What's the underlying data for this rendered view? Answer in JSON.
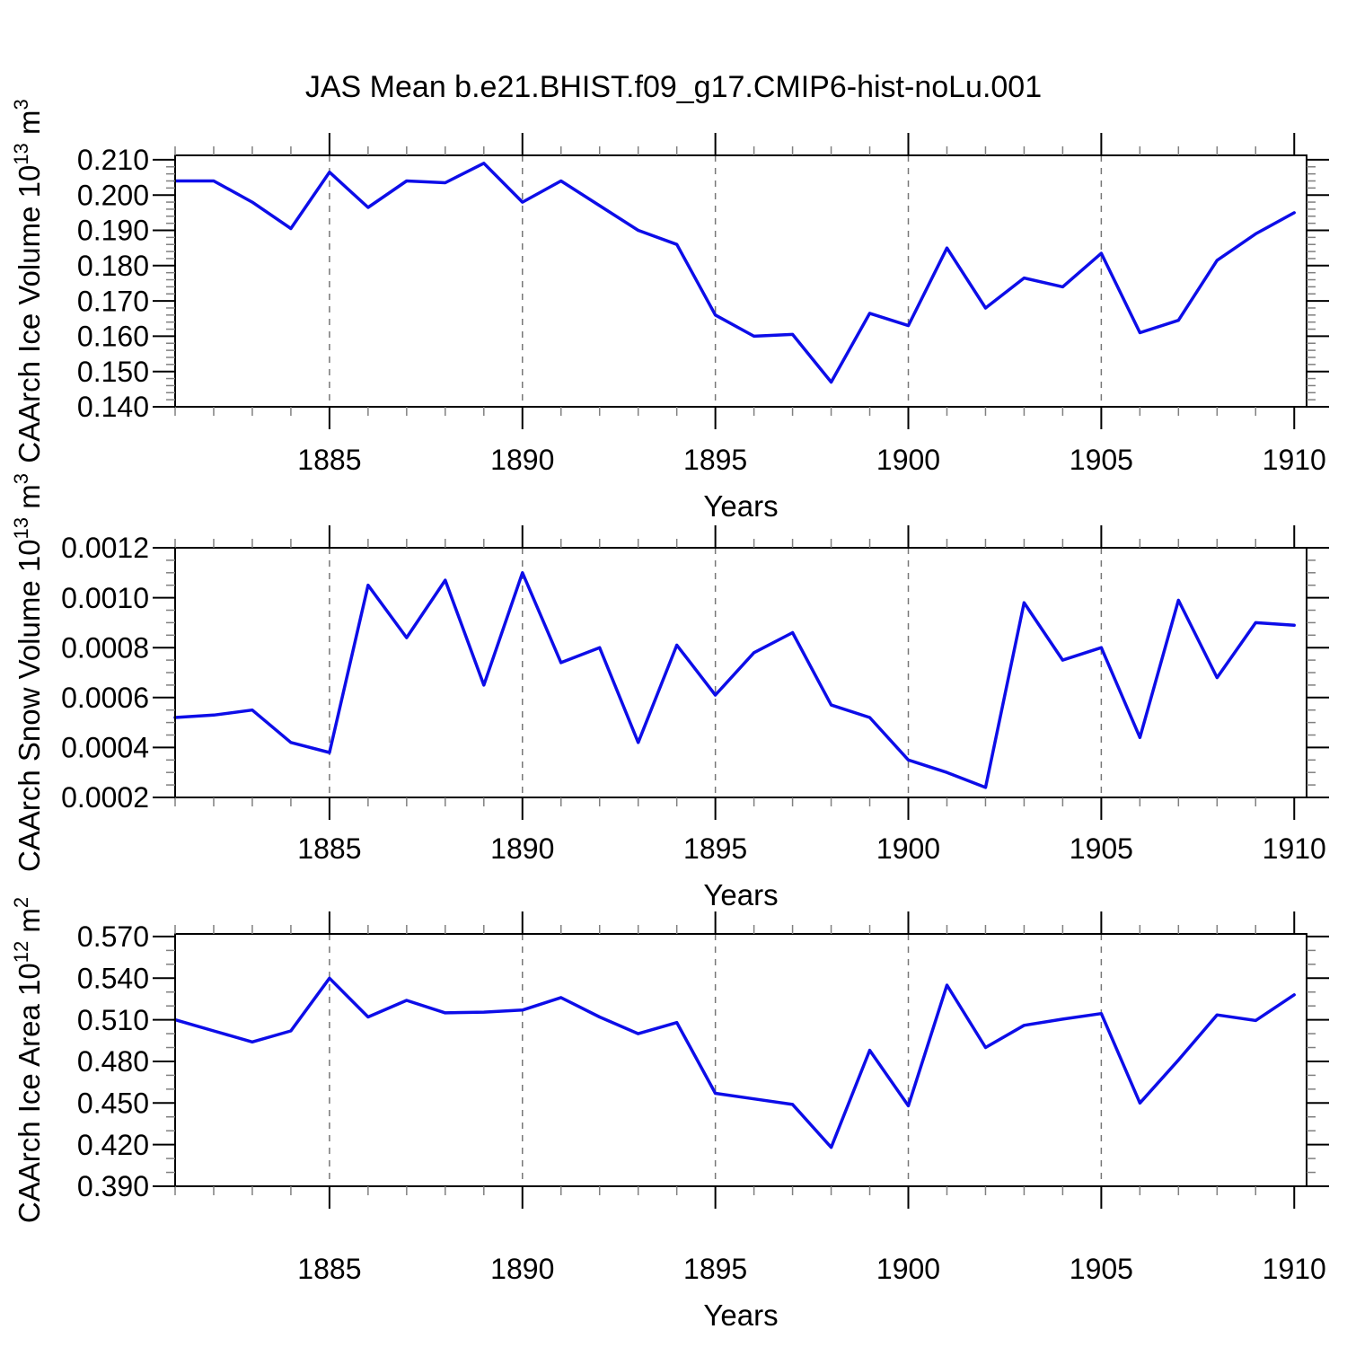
{
  "title": "JAS Mean b.e21.BHIST.f09_g17.CMIP6-hist-noLu.001",
  "chart_data": {
    "type": "line",
    "title": "JAS Mean b.e21.BHIST.f09_g17.CMIP6-hist-noLu.001",
    "line_color": "#0d0de8",
    "grid_color": "#777777",
    "xlabel": "Years",
    "x": [
      1881,
      1882,
      1883,
      1884,
      1885,
      1886,
      1887,
      1888,
      1889,
      1890,
      1891,
      1892,
      1893,
      1894,
      1895,
      1896,
      1897,
      1898,
      1899,
      1900,
      1901,
      1902,
      1903,
      1904,
      1905,
      1906,
      1907,
      1908,
      1909,
      1910
    ],
    "xlim": [
      1881,
      1910.32
    ],
    "xticks_major": [
      1885,
      1890,
      1895,
      1900,
      1905,
      1910
    ],
    "xtick_labels": [
      "1885",
      "1890",
      "1895",
      "1900",
      "1905",
      "1910"
    ],
    "grid_years": [
      1885,
      1890,
      1895,
      1900,
      1905
    ],
    "panels": [
      {
        "name": "caarch-ice-volume",
        "ylabel": "CAArch Ice Volume 10^13 m^3",
        "xlabel": "Years",
        "ylim": [
          0.14,
          0.21125
        ],
        "ytick_start": 0.14,
        "ytick_step": 0.01,
        "ytick_minor_step": 0.002,
        "ytick_decimals": 3,
        "ytick_labels": [
          "0.140",
          "0.150",
          "0.160",
          "0.170",
          "0.180",
          "0.190",
          "0.200",
          "0.210"
        ],
        "values": [
          0.204,
          0.204,
          0.198,
          0.1905,
          0.2065,
          0.1965,
          0.204,
          0.2035,
          0.209,
          0.198,
          0.204,
          0.197,
          0.19,
          0.186,
          0.166,
          0.16,
          0.1605,
          0.147,
          0.1665,
          0.163,
          0.185,
          0.168,
          0.1765,
          0.174,
          0.1835,
          0.161,
          0.1645,
          0.1815,
          0.189,
          0.195
        ]
      },
      {
        "name": "caarch-snow-volume",
        "ylabel": "CAArch Snow Volume 10^13 m^3",
        "xlabel": "Years",
        "ylim": [
          0.0002,
          0.0012
        ],
        "ytick_start": 0.0002,
        "ytick_step": 0.0002,
        "ytick_minor_step": 5e-05,
        "ytick_decimals": 4,
        "ytick_labels": [
          "0.0002",
          "0.0004",
          "0.0006",
          "0.0008",
          "0.0010",
          "0.0012"
        ],
        "values": [
          0.00052,
          0.00053,
          0.00055,
          0.00042,
          0.00038,
          0.00105,
          0.00084,
          0.00107,
          0.00065,
          0.0011,
          0.00074,
          0.0008,
          0.00042,
          0.00081,
          0.00061,
          0.00078,
          0.00086,
          0.00057,
          0.00052,
          0.00035,
          0.0003,
          0.00024,
          0.00098,
          0.00075,
          0.0008,
          0.00044,
          0.00099,
          0.00068,
          0.0009,
          0.00089
        ]
      },
      {
        "name": "caarch-ice-area",
        "ylabel": "CAArch Ice Area 10^12 m^2",
        "xlabel": "Years",
        "ylim": [
          0.39,
          0.5719
        ],
        "ytick_start": 0.39,
        "ytick_step": 0.03,
        "ytick_minor_step": 0.01,
        "ytick_decimals": 3,
        "ytick_labels": [
          "0.390",
          "0.420",
          "0.450",
          "0.480",
          "0.510",
          "0.540",
          "0.570"
        ],
        "values": [
          0.51,
          0.502,
          0.494,
          0.502,
          0.54,
          0.512,
          0.524,
          0.515,
          0.5155,
          0.517,
          0.526,
          0.512,
          0.5,
          0.508,
          0.457,
          0.453,
          0.449,
          0.418,
          0.488,
          0.448,
          0.535,
          0.49,
          0.506,
          0.5105,
          0.5145,
          0.45,
          0.481,
          0.5135,
          0.5095,
          0.528
        ]
      }
    ]
  }
}
